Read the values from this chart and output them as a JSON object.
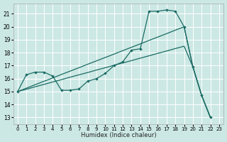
{
  "xlabel": "Humidex (Indice chaleur)",
  "bg_color": "#cce8e4",
  "grid_color": "#ffffff",
  "line_color": "#1a6b64",
  "xlim": [
    -0.5,
    23.5
  ],
  "ylim": [
    12.5,
    21.8
  ],
  "xticks": [
    0,
    1,
    2,
    3,
    4,
    5,
    6,
    7,
    8,
    9,
    10,
    11,
    12,
    13,
    14,
    15,
    16,
    17,
    18,
    19,
    20,
    21,
    22,
    23
  ],
  "yticks": [
    13,
    14,
    15,
    16,
    17,
    18,
    19,
    20,
    21
  ],
  "wavy_x": [
    0,
    1,
    2,
    3,
    4,
    5,
    6,
    7,
    8,
    9,
    10,
    11,
    12,
    13,
    14,
    15,
    16,
    17,
    18,
    19,
    20,
    21,
    22
  ],
  "wavy_y": [
    15.0,
    16.3,
    16.5,
    16.5,
    16.2,
    15.1,
    15.1,
    15.2,
    15.8,
    16.0,
    16.4,
    17.0,
    17.3,
    18.2,
    18.3,
    21.2,
    21.2,
    21.3,
    21.2,
    20.0,
    16.9,
    14.7,
    13.0
  ],
  "upper_x": [
    0,
    1,
    2,
    3,
    4,
    5,
    6,
    7,
    8,
    9,
    10,
    11,
    12,
    13,
    14,
    15,
    16,
    17,
    18,
    19,
    20,
    21,
    22
  ],
  "upper_y": [
    15.0,
    15.26,
    15.53,
    15.79,
    16.05,
    16.32,
    16.58,
    16.84,
    17.11,
    17.37,
    17.63,
    17.89,
    18.16,
    18.42,
    18.68,
    18.95,
    19.21,
    19.47,
    19.74,
    20.0,
    16.9,
    14.7,
    13.0
  ],
  "lower_x": [
    0,
    1,
    2,
    3,
    4,
    5,
    6,
    7,
    8,
    9,
    10,
    11,
    12,
    13,
    14,
    15,
    16,
    17,
    18,
    19,
    20,
    21,
    22
  ],
  "lower_y": [
    15.0,
    15.18,
    15.37,
    15.55,
    15.74,
    15.92,
    16.11,
    16.29,
    16.47,
    16.66,
    16.84,
    17.03,
    17.21,
    17.39,
    17.58,
    17.76,
    17.95,
    18.13,
    18.32,
    18.5,
    16.9,
    14.7,
    13.0
  ]
}
